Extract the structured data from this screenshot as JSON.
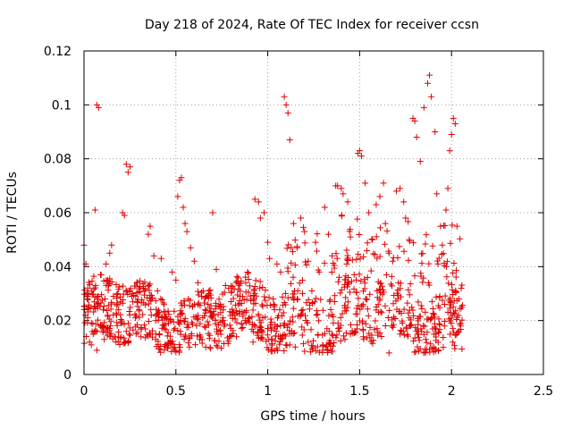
{
  "chart_data": {
    "type": "scatter",
    "title": "Day 218 of 2024, Rate Of TEC Index for receiver ccsn",
    "xlabel": "GPS time / hours",
    "ylabel": "ROTI / TECUs",
    "xlim": [
      0,
      2.5
    ],
    "ylim": [
      0,
      0.12
    ],
    "x_ticks": [
      "0",
      "0.5",
      "1",
      "1.5",
      "2",
      "2.5"
    ],
    "y_ticks": [
      "0",
      "0.02",
      "0.04",
      "0.06",
      "0.08",
      "0.1",
      "0.12"
    ],
    "grid": true,
    "marker": "plus",
    "color": "#e00000",
    "series": [
      {
        "points": [
          [
            0.0,
            0.048
          ],
          [
            0.01,
            0.041
          ],
          [
            0.02,
            0.021
          ],
          [
            0.02,
            0.029
          ],
          [
            0.03,
            0.012
          ],
          [
            0.04,
            0.019
          ],
          [
            0.05,
            0.015
          ],
          [
            0.06,
            0.025
          ],
          [
            0.06,
            0.061
          ],
          [
            0.07,
            0.1
          ],
          [
            0.08,
            0.099
          ],
          [
            0.09,
            0.037
          ],
          [
            0.1,
            0.018
          ],
          [
            0.12,
            0.041
          ],
          [
            0.13,
            0.022
          ],
          [
            0.14,
            0.045
          ],
          [
            0.15,
            0.048
          ],
          [
            0.16,
            0.029
          ],
          [
            0.18,
            0.026
          ],
          [
            0.2,
            0.019
          ],
          [
            0.21,
            0.06
          ],
          [
            0.22,
            0.059
          ],
          [
            0.23,
            0.078
          ],
          [
            0.24,
            0.075
          ],
          [
            0.25,
            0.077
          ],
          [
            0.26,
            0.029
          ],
          [
            0.28,
            0.021
          ],
          [
            0.3,
            0.024
          ],
          [
            0.33,
            0.031
          ],
          [
            0.35,
            0.052
          ],
          [
            0.36,
            0.055
          ],
          [
            0.38,
            0.044
          ],
          [
            0.4,
            0.031
          ],
          [
            0.41,
            0.023
          ],
          [
            0.42,
            0.043
          ],
          [
            0.44,
            0.021
          ],
          [
            0.46,
            0.019
          ],
          [
            0.48,
            0.038
          ],
          [
            0.5,
            0.035
          ],
          [
            0.51,
            0.066
          ],
          [
            0.52,
            0.072
          ],
          [
            0.53,
            0.073
          ],
          [
            0.54,
            0.062
          ],
          [
            0.55,
            0.056
          ],
          [
            0.56,
            0.053
          ],
          [
            0.58,
            0.047
          ],
          [
            0.6,
            0.042
          ],
          [
            0.62,
            0.034
          ],
          [
            0.64,
            0.029
          ],
          [
            0.66,
            0.024
          ],
          [
            0.68,
            0.03
          ],
          [
            0.7,
            0.06
          ],
          [
            0.72,
            0.039
          ],
          [
            0.74,
            0.025
          ],
          [
            0.77,
            0.033
          ],
          [
            0.8,
            0.027
          ],
          [
            0.82,
            0.022
          ],
          [
            0.85,
            0.029
          ],
          [
            0.88,
            0.034
          ],
          [
            0.9,
            0.021
          ],
          [
            0.93,
            0.065
          ],
          [
            0.95,
            0.064
          ],
          [
            0.96,
            0.058
          ],
          [
            0.98,
            0.06
          ],
          [
            1.0,
            0.049
          ],
          [
            1.01,
            0.043
          ],
          [
            1.03,
            0.028
          ],
          [
            1.05,
            0.041
          ],
          [
            1.07,
            0.038
          ],
          [
            1.09,
            0.103
          ],
          [
            1.1,
            0.1
          ],
          [
            1.11,
            0.097
          ],
          [
            1.12,
            0.087
          ],
          [
            1.14,
            0.056
          ],
          [
            1.16,
            0.047
          ],
          [
            1.18,
            0.058
          ],
          [
            1.2,
            0.053
          ],
          [
            1.22,
            0.042
          ],
          [
            1.24,
            0.031
          ],
          [
            1.26,
            0.049
          ],
          [
            1.28,
            0.038
          ],
          [
            1.31,
            0.062
          ],
          [
            1.33,
            0.052
          ],
          [
            1.35,
            0.044
          ],
          [
            1.37,
            0.07
          ],
          [
            1.38,
            0.07
          ],
          [
            1.4,
            0.069
          ],
          [
            1.41,
            0.067
          ],
          [
            1.43,
            0.041
          ],
          [
            1.45,
            0.051
          ],
          [
            1.47,
            0.037
          ],
          [
            1.49,
            0.082
          ],
          [
            1.5,
            0.083
          ],
          [
            1.51,
            0.081
          ],
          [
            1.53,
            0.071
          ],
          [
            1.55,
            0.06
          ],
          [
            1.57,
            0.05
          ],
          [
            1.59,
            0.063
          ],
          [
            1.61,
            0.066
          ],
          [
            1.63,
            0.071
          ],
          [
            1.64,
            0.056
          ],
          [
            1.66,
            0.045
          ],
          [
            1.68,
            0.042
          ],
          [
            1.7,
            0.068
          ],
          [
            1.72,
            0.069
          ],
          [
            1.74,
            0.064
          ],
          [
            1.75,
            0.058
          ],
          [
            1.77,
            0.05
          ],
          [
            1.79,
            0.095
          ],
          [
            1.8,
            0.094
          ],
          [
            1.81,
            0.088
          ],
          [
            1.83,
            0.079
          ],
          [
            1.85,
            0.099
          ],
          [
            1.87,
            0.108
          ],
          [
            1.88,
            0.111
          ],
          [
            1.89,
            0.103
          ],
          [
            1.91,
            0.09
          ],
          [
            1.92,
            0.067
          ],
          [
            1.94,
            0.055
          ],
          [
            1.95,
            0.048
          ],
          [
            1.97,
            0.061
          ],
          [
            1.98,
            0.069
          ],
          [
            1.99,
            0.083
          ],
          [
            2.0,
            0.089
          ],
          [
            2.01,
            0.095
          ],
          [
            2.02,
            0.093
          ],
          [
            2.03,
            0.055
          ],
          [
            2.04,
            0.028
          ],
          [
            2.05,
            0.018
          ],
          [
            0.04,
            0.011
          ],
          [
            0.07,
            0.009
          ],
          [
            0.11,
            0.013
          ],
          [
            0.17,
            0.014
          ],
          [
            0.23,
            0.016
          ],
          [
            0.31,
            0.014
          ],
          [
            0.39,
            0.013
          ],
          [
            0.47,
            0.012
          ],
          [
            0.55,
            0.014
          ],
          [
            0.63,
            0.013
          ],
          [
            0.73,
            0.015
          ],
          [
            0.83,
            0.014
          ],
          [
            0.92,
            0.012
          ],
          [
            1.02,
            0.013
          ],
          [
            1.12,
            0.011
          ],
          [
            1.22,
            0.012
          ],
          [
            1.32,
            0.011
          ],
          [
            1.42,
            0.013
          ],
          [
            1.52,
            0.014
          ],
          [
            1.66,
            0.008
          ],
          [
            1.72,
            0.015
          ],
          [
            1.86,
            0.013
          ],
          [
            1.93,
            0.009
          ]
        ]
      }
    ]
  }
}
